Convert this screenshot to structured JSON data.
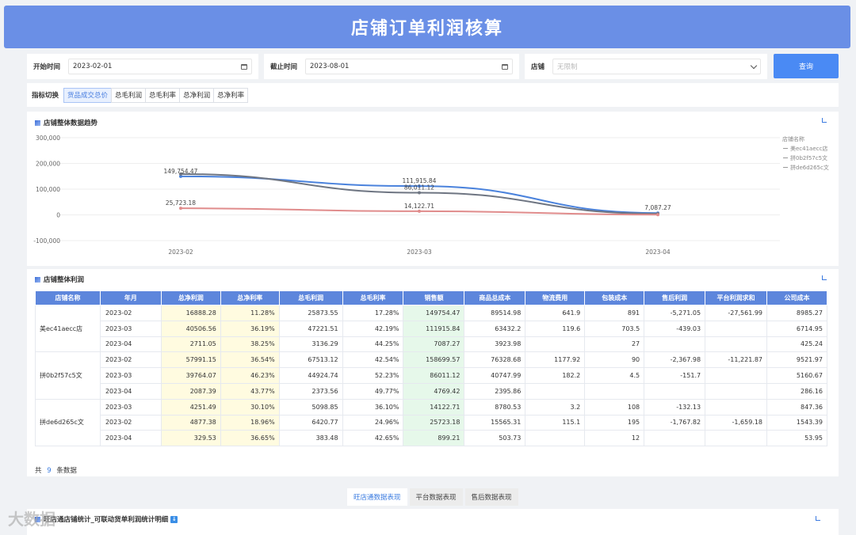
{
  "header": {
    "title": "店铺订单利润核算"
  },
  "filters": {
    "start_label": "开始时间",
    "start_value": "2023-02-01",
    "end_label": "截止时间",
    "end_value": "2023-08-01",
    "shop_label": "店铺",
    "shop_placeholder": "无限制",
    "query_label": "查询"
  },
  "metric_switch": {
    "label": "指标切换",
    "tabs": [
      "货品成交总价",
      "总毛利润",
      "总毛利率",
      "总净利润",
      "总净利率"
    ],
    "active": 0
  },
  "trend": {
    "title": "店铺整体数据趋势"
  },
  "chart_data": {
    "type": "line",
    "title": "店铺整体数据趋势",
    "categories": [
      "2023-02",
      "2023-03",
      "2023-04"
    ],
    "ylim": [
      -100000,
      300000
    ],
    "yticks": [
      "300,000",
      "200,000",
      "100,000",
      "0",
      "-100,000"
    ],
    "legend_title": "店铺名称",
    "legend_position": "right",
    "series": [
      {
        "name": "美ec41aecc店",
        "values": [
          149754.47,
          111915.84,
          7087.27
        ],
        "color": "#4a82dc"
      },
      {
        "name": "拼0b2f57c5文",
        "values": [
          158699.57,
          86011.12,
          4769.42
        ],
        "color": "#6e7582"
      },
      {
        "name": "拼de6d265c文",
        "values": [
          25723.18,
          14122.71,
          899.21
        ],
        "color": "#e08c8c"
      }
    ],
    "data_labels": [
      {
        "text": "149,754.47",
        "series": 0,
        "i": 0
      },
      {
        "text": "111,915.84",
        "series": 0,
        "i": 1
      },
      {
        "text": "86,011.12",
        "series": 1,
        "i": 1
      },
      {
        "text": "7,087.27",
        "series": 0,
        "i": 2
      },
      {
        "text": "25,723.18",
        "series": 2,
        "i": 0
      },
      {
        "text": "14,122.71",
        "series": 2,
        "i": 1
      }
    ]
  },
  "profit_table": {
    "title": "店铺整体利润",
    "columns": [
      "店铺名称",
      "年月",
      "总净利润",
      "总净利率",
      "总毛利润",
      "总毛利率",
      "销售额",
      "商品总成本",
      "物流费用",
      "包装成本",
      "售后利润",
      "平台利润求和",
      "公司成本"
    ],
    "groups": [
      {
        "shop": "美ec41aecc店",
        "rows": [
          [
            "2023-02",
            "16888.28",
            "11.28%",
            "25873.55",
            "17.28%",
            "149754.47",
            "89514.98",
            "641.9",
            "891",
            "-5,271.05",
            "-27,561.99",
            "8985.27"
          ],
          [
            "2023-03",
            "40506.56",
            "36.19%",
            "47221.51",
            "42.19%",
            "111915.84",
            "63432.2",
            "119.6",
            "703.5",
            "-439.03",
            "",
            "6714.95"
          ],
          [
            "2023-04",
            "2711.05",
            "38.25%",
            "3136.29",
            "44.25%",
            "7087.27",
            "3923.98",
            "",
            "27",
            "",
            "",
            "425.24"
          ]
        ]
      },
      {
        "shop": "拼0b2f57c5文",
        "rows": [
          [
            "2023-02",
            "57991.15",
            "36.54%",
            "67513.12",
            "42.54%",
            "158699.57",
            "76328.68",
            "1177.92",
            "90",
            "-2,367.98",
            "-11,221.87",
            "9521.97"
          ],
          [
            "2023-03",
            "39764.07",
            "46.23%",
            "44924.74",
            "52.23%",
            "86011.12",
            "40747.99",
            "182.2",
            "4.5",
            "-151.7",
            "",
            "5160.67"
          ],
          [
            "2023-04",
            "2087.39",
            "43.77%",
            "2373.56",
            "49.77%",
            "4769.42",
            "2395.86",
            "",
            "",
            "",
            "",
            "286.16"
          ]
        ]
      },
      {
        "shop": "拼de6d265c文",
        "rows": [
          [
            "2023-03",
            "4251.49",
            "30.10%",
            "5098.85",
            "36.10%",
            "14122.71",
            "8780.53",
            "3.2",
            "108",
            "-132.13",
            "",
            "847.36"
          ],
          [
            "2023-02",
            "4877.38",
            "18.96%",
            "6420.77",
            "24.96%",
            "25723.18",
            "15565.31",
            "115.1",
            "195",
            "-1,767.82",
            "-1,659.18",
            "1543.39"
          ],
          [
            "2023-04",
            "329.53",
            "36.65%",
            "383.48",
            "42.65%",
            "899.21",
            "503.73",
            "",
            "12",
            "",
            "",
            "53.95"
          ]
        ]
      }
    ],
    "footer": {
      "prefix": "共",
      "count": "9",
      "suffix": "条数据"
    }
  },
  "bottom_tabs": {
    "tabs": [
      "旺店通数据表现",
      "平台数据表现",
      "售后数据表现"
    ],
    "active": 0
  },
  "bottom_section": {
    "title": "旺店通店铺统计_可联动货单利润统计明细"
  },
  "watermark": "大数据"
}
